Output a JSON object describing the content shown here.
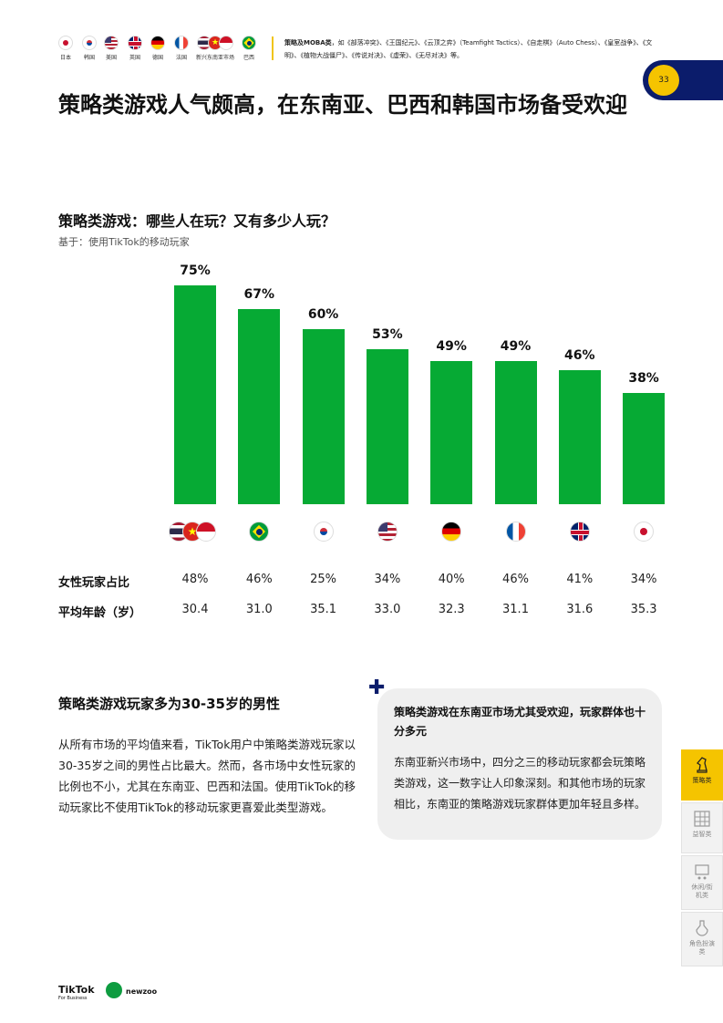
{
  "header": {
    "markets": [
      {
        "label": "日本",
        "icon": "japan-flag-icon"
      },
      {
        "label": "韩国",
        "icon": "korea-flag-icon"
      },
      {
        "label": "美国",
        "icon": "usa-flag-icon"
      },
      {
        "label": "英国",
        "icon": "uk-flag-icon"
      },
      {
        "label": "德国",
        "icon": "germany-flag-icon"
      },
      {
        "label": "法国",
        "icon": "france-flag-icon"
      },
      {
        "label": "新兴东南亚市场",
        "icon": "sea-flags-icon"
      },
      {
        "label": "巴西",
        "icon": "brazil-flag-icon"
      }
    ],
    "note_bold": "策略及MOBA类",
    "note_text": "，如《部落冲突》、《王国纪元》、《云顶之弈》（Teamfight Tactics）、《自走棋》（Auto Chess）、《皇室战争》、《文明》、《植物大战僵尸》、《传说对决》、《虚荣》、《无尽对决》等。",
    "page_number": "33"
  },
  "main_title": "策略类游戏人气颇高，在东南亚、巴西和韩国市场备受欢迎",
  "chart": {
    "title": "策略类游戏：哪些人在玩？又有多少人玩？",
    "subtitle": "基于：使用TikTok的移动玩家",
    "row_labels": {
      "female": "女性玩家占比",
      "age": "平均年龄（岁）"
    }
  },
  "chart_data": {
    "type": "bar",
    "categories": [
      "新兴东南亚市场",
      "巴西",
      "韩国",
      "美国",
      "德国",
      "法国",
      "英国",
      "日本"
    ],
    "category_icons": [
      "sea-flags-icon",
      "brazil-flag-icon",
      "korea-flag-icon",
      "usa-flag-icon",
      "germany-flag-icon",
      "france-flag-icon",
      "uk-flag-icon",
      "japan-flag-icon"
    ],
    "values": [
      75,
      67,
      60,
      53,
      49,
      49,
      46,
      38
    ],
    "value_labels": [
      "75%",
      "67%",
      "60%",
      "53%",
      "49%",
      "49%",
      "46%",
      "38%"
    ],
    "female_share": [
      "48%",
      "46%",
      "25%",
      "34%",
      "40%",
      "46%",
      "41%",
      "34%"
    ],
    "avg_age": [
      "30.4",
      "31.0",
      "35.1",
      "33.0",
      "32.3",
      "31.1",
      "31.6",
      "35.3"
    ],
    "ylim": [
      0,
      75
    ],
    "color": "#06aa34"
  },
  "section": {
    "title": "策略类游戏玩家多为30-35岁的男性",
    "body": "从所有市场的平均值来看，TikTok用户中策略类游戏玩家以30-35岁之间的男性占比最大。然而，各市场中女性玩家的比例也不小，尤其在东南亚、巴西和法国。使用TikTok的移动玩家比不使用TikTok的移动玩家更喜爱此类型游戏。"
  },
  "callout": {
    "plus_icon": "plus-icon",
    "title": "策略类游戏在东南亚市场尤其受欢迎，玩家群体也十分多元",
    "text": "东南亚新兴市场中，四分之三的移动玩家都会玩策略类游戏，这一数字让人印象深刻。和其他市场的玩家相比，东南亚的策略游戏玩家群体更加年轻且多样。"
  },
  "side_tabs": [
    {
      "label": "策略类",
      "icon": "chess-knight-icon",
      "active": true
    },
    {
      "label": "益智类",
      "icon": "puzzle-grid-icon",
      "active": false
    },
    {
      "label": "休闲/街机类",
      "icon": "arcade-icon",
      "active": false
    },
    {
      "label": "角色扮演类",
      "icon": "potion-icon",
      "active": false
    }
  ],
  "footer": {
    "tiktok": "TikTok",
    "tiktok_sub": "For Business",
    "newzoo": "newzoo"
  },
  "colors": {
    "accent": "#f5c400",
    "navy": "#0b1c6b",
    "bar": "#06aa34"
  }
}
